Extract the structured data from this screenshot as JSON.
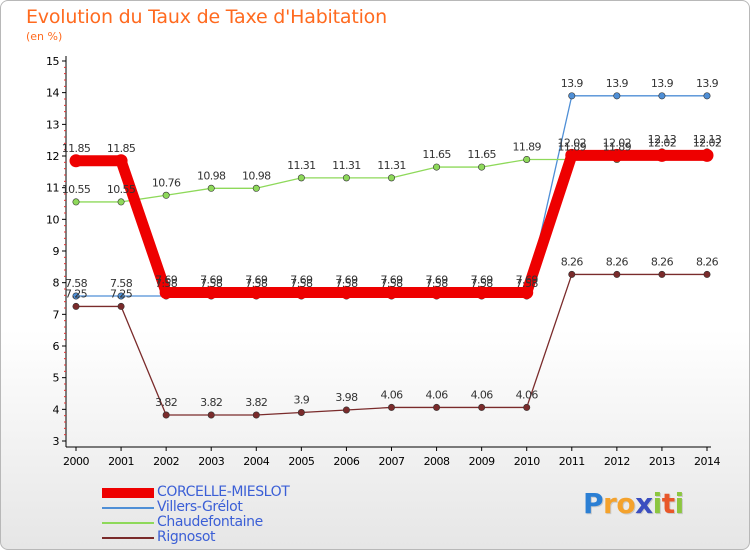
{
  "title": "Evolution du Taux de Taxe d'Habitation",
  "subtitle": "(en %)",
  "logo": {
    "text": "Proxiti",
    "letters": [
      "P",
      "r",
      "o",
      "x",
      "i",
      "t",
      "i"
    ],
    "colors": [
      "#2b7fd4",
      "#f4a22c",
      "#f4a22c",
      "#3b4ec0",
      "#8cc63f",
      "#e8572a",
      "#8cc63f"
    ]
  },
  "chart_data": {
    "type": "line",
    "title": "Evolution du Taux de Taxe d'Habitation",
    "ylabel": "(en %)",
    "xlabel": "",
    "ylim": [
      3,
      15
    ],
    "yticks": [
      3,
      4,
      5,
      6,
      7,
      8,
      9,
      10,
      11,
      12,
      13,
      14,
      15
    ],
    "categories": [
      "2000",
      "2001",
      "2002",
      "2003",
      "2004",
      "2005",
      "2006",
      "2007",
      "2008",
      "2009",
      "2010",
      "2011",
      "2012",
      "2013",
      "2014"
    ],
    "series": [
      {
        "name": "CORCELLE-MIESLOT",
        "color": "#ee0000",
        "style": "thick",
        "values": [
          11.85,
          11.85,
          7.69,
          7.69,
          7.69,
          7.69,
          7.69,
          7.69,
          7.69,
          7.69,
          7.69,
          12.02,
          12.02,
          12.02,
          12.02
        ],
        "labels": [
          "11.85",
          "11.85",
          "7.69",
          "7.69",
          "7.69",
          "7.69",
          "7.69",
          "7.69",
          "7.69",
          "7.69",
          "7.69",
          "12.02",
          "12.02",
          "12.02",
          "12.02"
        ]
      },
      {
        "name": "Villers-Grélot",
        "color": "#4f8fd6",
        "style": "thin",
        "values": [
          7.58,
          7.58,
          7.58,
          7.58,
          7.58,
          7.58,
          7.58,
          7.58,
          7.58,
          7.58,
          7.58,
          13.9,
          13.9,
          13.9,
          13.9
        ],
        "labels": [
          "7.58",
          "7.58",
          "7.58",
          "7.58",
          "7.58",
          "7.58",
          "7.58",
          "7.58",
          "7.58",
          "7.58",
          "7.58",
          "13.9",
          "13.9",
          "13.9",
          "13.9"
        ]
      },
      {
        "name": "Chaudefontaine",
        "color": "#8ed95a",
        "style": "thin",
        "values": [
          10.55,
          10.55,
          10.76,
          10.98,
          10.98,
          11.31,
          11.31,
          11.31,
          11.65,
          11.65,
          11.89,
          11.89,
          11.89,
          12.13,
          12.13
        ],
        "labels": [
          "10.55",
          "10.55",
          "10.76",
          "10.98",
          "10.98",
          "11.31",
          "11.31",
          "11.31",
          "11.65",
          "11.65",
          "11.89",
          "11.89",
          "11.89",
          "12.13",
          "12.13"
        ]
      },
      {
        "name": "Rignosot",
        "color": "#7a2b2b",
        "style": "thin",
        "values": [
          7.25,
          7.25,
          3.82,
          3.82,
          3.82,
          3.9,
          3.98,
          4.06,
          4.06,
          4.06,
          4.06,
          8.26,
          8.26,
          8.26,
          8.26
        ],
        "labels": [
          "7.25",
          "7.25",
          "3.82",
          "3.82",
          "3.82",
          "3.9",
          "3.98",
          "4.06",
          "4.06",
          "4.06",
          "4.06",
          "8.26",
          "8.26",
          "8.26",
          "8.26"
        ]
      }
    ],
    "legend": [
      "CORCELLE-MIESLOT",
      "Villers-Grélot",
      "Chaudefontaine",
      "Rignosot"
    ],
    "legend_position": "bottom-left",
    "grid": false
  }
}
